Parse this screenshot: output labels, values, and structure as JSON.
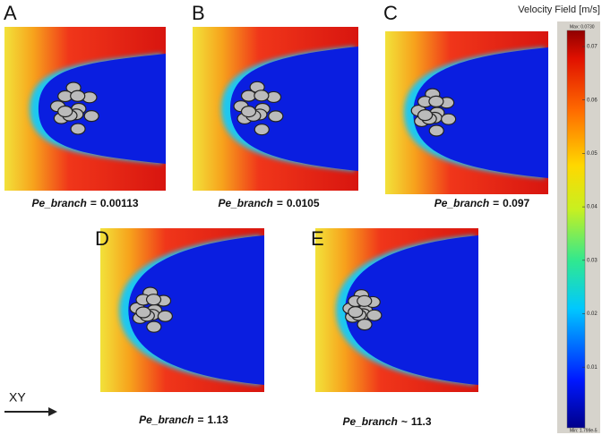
{
  "panels": [
    {
      "letter": "A",
      "variable": "Pe_branch",
      "relation": "=",
      "value": "0.00113"
    },
    {
      "letter": "B",
      "variable": "Pe_branch",
      "relation": "=",
      "value": "0.0105"
    },
    {
      "letter": "C",
      "variable": "Pe_branch",
      "relation": "=",
      "value": "0.097"
    },
    {
      "letter": "D",
      "variable": "Pe_branch",
      "relation": "=",
      "value": "1.13"
    },
    {
      "letter": "E",
      "variable": "Pe_branch",
      "relation": "~",
      "value": "11.3"
    }
  ],
  "colorbar": {
    "title": "Velocity Field [m/s]",
    "max_label": "Max: 0.0730",
    "min_label": "Min: 1.799e-5",
    "ticks": [
      0.07,
      0.06,
      0.05,
      0.04,
      0.03,
      0.02,
      0.01
    ]
  },
  "axis_label": "XY"
}
